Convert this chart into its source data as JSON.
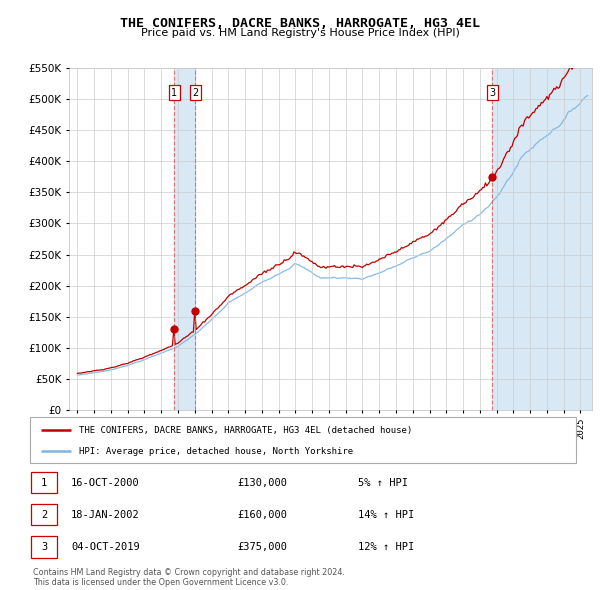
{
  "title": "THE CONIFERS, DACRE BANKS, HARROGATE, HG3 4EL",
  "subtitle": "Price paid vs. HM Land Registry's House Price Index (HPI)",
  "legend_line1": "THE CONIFERS, DACRE BANKS, HARROGATE, HG3 4EL (detached house)",
  "legend_line2": "HPI: Average price, detached house, North Yorkshire",
  "table": [
    {
      "num": "1",
      "date": "16-OCT-2000",
      "price": "£130,000",
      "pct": "5% ↑ HPI"
    },
    {
      "num": "2",
      "date": "18-JAN-2002",
      "price": "£160,000",
      "pct": "14% ↑ HPI"
    },
    {
      "num": "3",
      "date": "04-OCT-2019",
      "price": "£375,000",
      "pct": "12% ↑ HPI"
    }
  ],
  "footer": [
    "Contains HM Land Registry data © Crown copyright and database right 2024.",
    "This data is licensed under the Open Government Licence v3.0."
  ],
  "hpi_color": "#7eb4e2",
  "price_color": "#c00000",
  "marker_color": "#c00000",
  "vline_color": "#e06060",
  "shade_color": "#d8e8f4",
  "grid_color": "#cccccc",
  "bg_color": "#ffffff",
  "ylim": [
    0,
    550000
  ],
  "yticks": [
    0,
    50000,
    100000,
    150000,
    200000,
    250000,
    300000,
    350000,
    400000,
    450000,
    500000,
    550000
  ],
  "sale1_x": 2000.79,
  "sale1_y": 130000,
  "sale2_x": 2002.04,
  "sale2_y": 160000,
  "sale3_x": 2019.75,
  "sale3_y": 375000,
  "xmin": 1994.5,
  "xmax": 2025.7
}
